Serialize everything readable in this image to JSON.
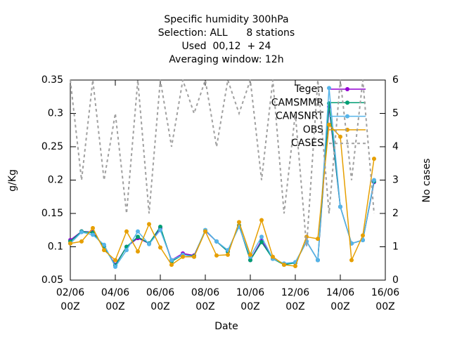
{
  "chart_data": {
    "type": "line",
    "title": [
      "Specific humidity 300hPa",
      "Selection: ALL      8 stations",
      "Used  00,12  + 24",
      "Averaging window: 12h"
    ],
    "xlabel": "Date",
    "ylabel": "g/Kg",
    "y2label": "No cases",
    "x": [
      "02/06 00Z",
      "02/06 12Z",
      "03/06 00Z",
      "03/06 12Z",
      "04/06 00Z",
      "04/06 12Z",
      "05/06 00Z",
      "05/06 12Z",
      "06/06 00Z",
      "06/06 12Z",
      "07/06 00Z",
      "07/06 12Z",
      "08/06 00Z",
      "08/06 12Z",
      "09/06 00Z",
      "09/06 12Z",
      "10/06 00Z",
      "10/06 12Z",
      "11/06 00Z",
      "11/06 12Z",
      "12/06 00Z",
      "12/06 12Z",
      "13/06 00Z",
      "13/06 12Z",
      "14/06 00Z",
      "14/06 12Z",
      "15/06 00Z",
      "15/06 12Z"
    ],
    "xlim": [
      "02/06 00Z",
      "16/06 00Z"
    ],
    "xticks": [
      "02/06 00Z",
      "04/06 00Z",
      "06/06 00Z",
      "08/06 00Z",
      "10/06 00Z",
      "12/06 00Z",
      "14/06 00Z",
      "16/06 00Z"
    ],
    "ylim": [
      0.05,
      0.35
    ],
    "yticks": [
      0.05,
      0.1,
      0.15,
      0.2,
      0.25,
      0.3,
      0.35
    ],
    "y2lim": [
      0,
      6
    ],
    "y2ticks": [
      0,
      1,
      2,
      3,
      4,
      5,
      6
    ],
    "legend": "top right",
    "series": [
      {
        "name": "Tegen",
        "color": "#9400d3",
        "values": [
          0.11,
          0.123,
          0.122,
          0.1,
          0.073,
          0.1,
          0.113,
          0.105,
          0.128,
          0.08,
          0.09,
          0.087,
          0.124,
          0.108,
          0.093,
          0.132,
          0.08,
          0.11,
          0.082,
          0.074,
          0.076,
          0.108,
          0.08,
          0.31,
          0.16,
          0.105,
          0.11,
          0.197
        ]
      },
      {
        "name": "CAMSMMR",
        "color": "#009e73",
        "values": [
          0.108,
          0.123,
          0.121,
          0.1,
          0.072,
          0.1,
          0.115,
          0.105,
          0.13,
          0.078,
          0.088,
          0.086,
          0.125,
          0.108,
          0.093,
          0.132,
          0.08,
          0.107,
          0.082,
          0.073,
          0.076,
          0.108,
          0.08,
          0.315,
          0.16,
          0.105,
          0.11,
          0.198
        ]
      },
      {
        "name": "CAMSNRT",
        "color": "#56b4e9",
        "values": [
          0.105,
          0.122,
          0.118,
          0.103,
          0.07,
          0.095,
          0.123,
          0.104,
          0.125,
          0.08,
          0.088,
          0.085,
          0.125,
          0.108,
          0.095,
          0.13,
          0.085,
          0.115,
          0.082,
          0.075,
          0.077,
          0.108,
          0.08,
          0.338,
          0.16,
          0.105,
          0.11,
          0.2
        ]
      },
      {
        "name": "OBS",
        "color": "#e69f00",
        "values": [
          0.105,
          0.108,
          0.128,
          0.095,
          0.08,
          0.123,
          0.093,
          0.134,
          0.099,
          0.073,
          0.085,
          0.085,
          0.123,
          0.087,
          0.088,
          0.137,
          0.088,
          0.14,
          0.085,
          0.073,
          0.071,
          0.115,
          0.112,
          0.283,
          0.265,
          0.08,
          0.117,
          0.232
        ]
      },
      {
        "name": "CASES",
        "color": "#a0a0a0",
        "axis": "y2",
        "dashed": true,
        "values": [
          6,
          3,
          6,
          3,
          5,
          2,
          6,
          2,
          6,
          4,
          6,
          5,
          6,
          4,
          6,
          5,
          6,
          3,
          6,
          2,
          5,
          1,
          6,
          2,
          6,
          3,
          6,
          2
        ]
      }
    ]
  }
}
